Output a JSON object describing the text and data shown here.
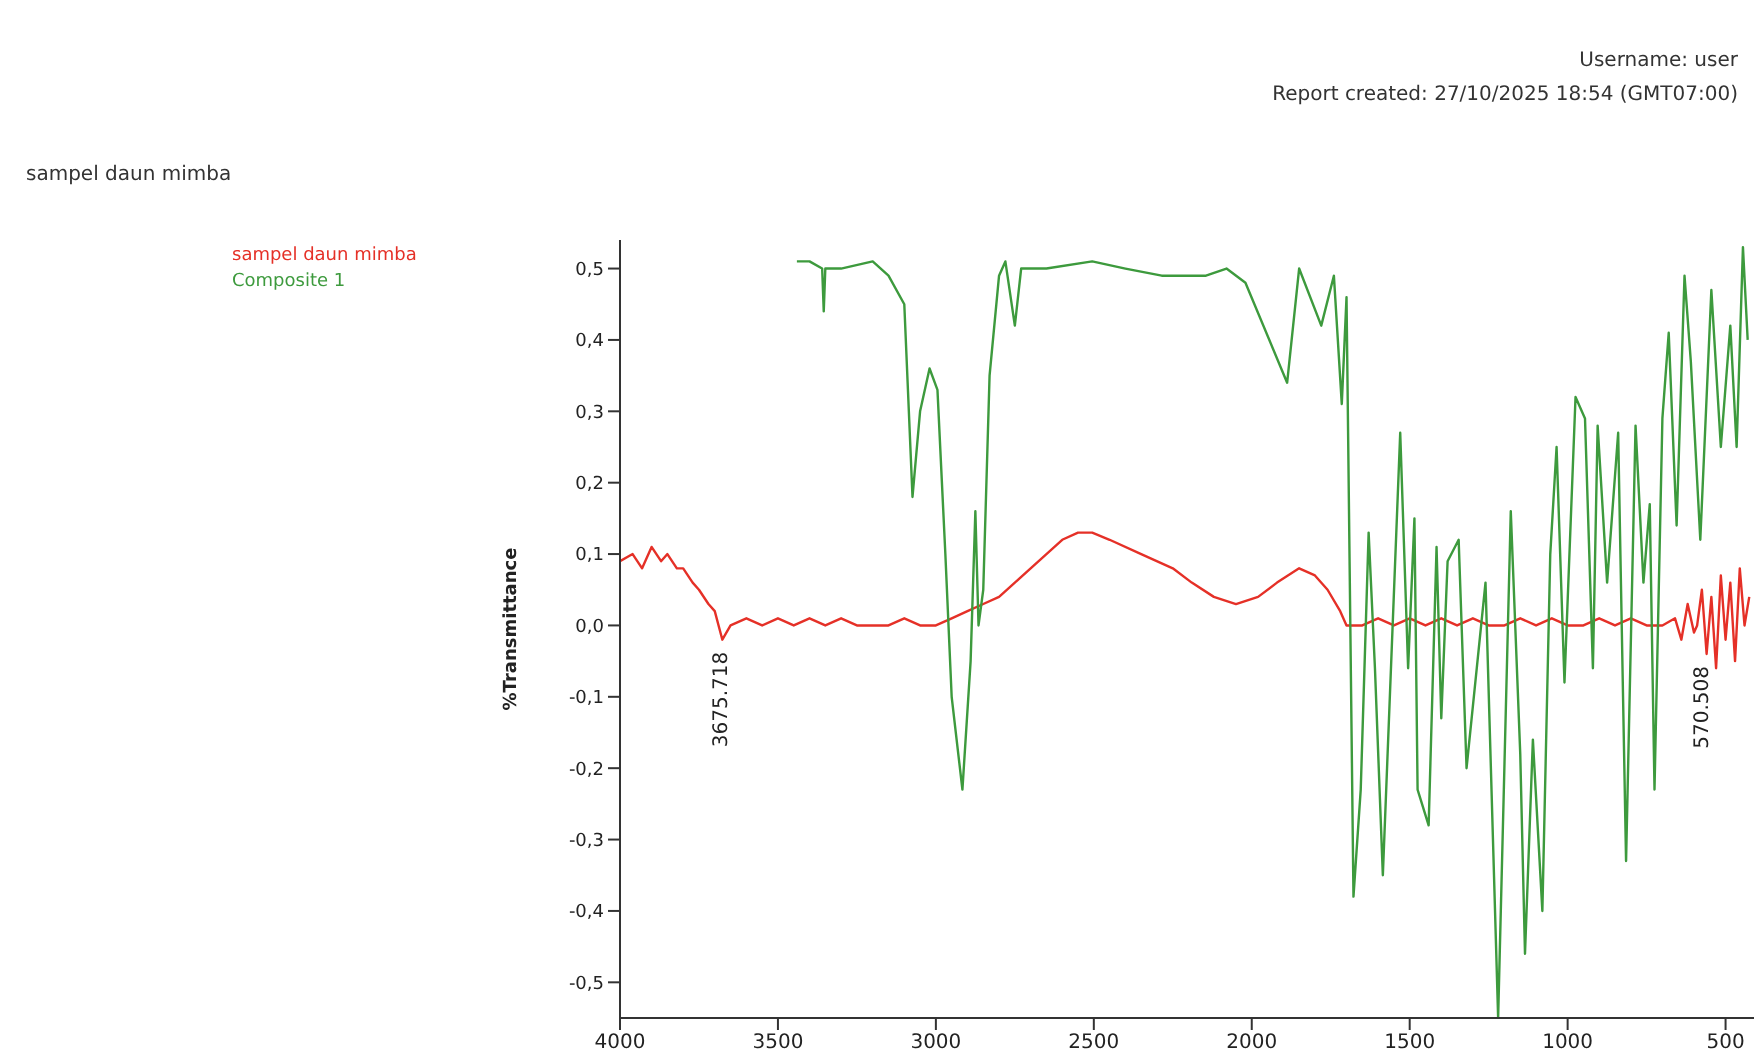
{
  "chart_data": {
    "type": "line",
    "subtitle": "sampel daun mimba",
    "ylabel": "%Transmittance",
    "annotations": [
      "Username: user",
      "Report created: 27/10/2025 18:54 (GMT07:00)",
      {
        "text": "3675.718",
        "x": 3675.718,
        "y": -0.02
      },
      {
        "text": "570.508",
        "x": 570.508,
        "y": -0.04
      }
    ],
    "xlim": [
      4000,
      410
    ],
    "xticks": [
      4000,
      3500,
      3000,
      2500,
      2000,
      1500,
      1000,
      500
    ],
    "ylim": [
      -0.55,
      0.54
    ],
    "yticks": [
      {
        "value": -0.5,
        "label": "-0,5"
      },
      {
        "value": -0.4,
        "label": "-0,4"
      },
      {
        "value": -0.3,
        "label": "-0,3"
      },
      {
        "value": -0.2,
        "label": "-0,2"
      },
      {
        "value": -0.1,
        "label": "-0,1"
      },
      {
        "value": 0,
        "label": "0,0"
      },
      {
        "value": 0.1,
        "label": "0,1"
      },
      {
        "value": 0.2,
        "label": "0,2"
      },
      {
        "value": 0.3,
        "label": "0,3"
      },
      {
        "value": 0.4,
        "label": "0,4"
      },
      {
        "value": 0.5,
        "label": "0,5"
      }
    ],
    "grid": false,
    "legend": "top left",
    "marker": "none",
    "line_style": "solid",
    "series": [
      {
        "name": "sampel daun mimba",
        "color": "#e53027",
        "x": [
          4000,
          3960,
          3930,
          3900,
          3870,
          3850,
          3820,
          3800,
          3770,
          3750,
          3720,
          3700,
          3676,
          3650,
          3600,
          3550,
          3500,
          3450,
          3400,
          3350,
          3300,
          3250,
          3200,
          3150,
          3100,
          3050,
          3000,
          2950,
          2900,
          2850,
          2800,
          2750,
          2700,
          2650,
          2600,
          2550,
          2505,
          2450,
          2350,
          2250,
          2190,
          2120,
          2050,
          1980,
          1920,
          1850,
          1800,
          1760,
          1720,
          1700,
          1650,
          1600,
          1550,
          1500,
          1450,
          1400,
          1350,
          1300,
          1250,
          1200,
          1150,
          1100,
          1050,
          1000,
          950,
          900,
          850,
          800,
          750,
          700,
          660,
          640,
          620,
          600,
          590,
          575,
          560,
          545,
          530,
          515,
          500,
          485,
          470,
          455,
          440,
          425
        ],
        "values": [
          0.09,
          0.1,
          0.08,
          0.11,
          0.09,
          0.1,
          0.08,
          0.08,
          0.06,
          0.05,
          0.03,
          0.02,
          -0.02,
          0.0,
          0.01,
          0.0,
          0.01,
          0.0,
          0.01,
          0.0,
          0.01,
          0.0,
          0.0,
          0.0,
          0.01,
          0.0,
          0.0,
          0.01,
          0.02,
          0.03,
          0.04,
          0.06,
          0.08,
          0.1,
          0.12,
          0.13,
          0.13,
          0.12,
          0.1,
          0.08,
          0.06,
          0.04,
          0.03,
          0.04,
          0.06,
          0.08,
          0.07,
          0.05,
          0.02,
          0.0,
          0.0,
          0.01,
          0.0,
          0.01,
          0.0,
          0.01,
          0.0,
          0.01,
          0.0,
          0.0,
          0.01,
          0.0,
          0.01,
          0.0,
          0.0,
          0.01,
          0.0,
          0.01,
          0.0,
          0.0,
          0.01,
          -0.02,
          0.03,
          -0.01,
          0.0,
          0.05,
          -0.04,
          0.04,
          -0.06,
          0.07,
          -0.02,
          0.06,
          -0.05,
          0.08,
          0.0,
          0.04
        ]
      },
      {
        "name": "Composite 1",
        "color": "#3d9a3d",
        "x": [
          3440,
          3400,
          3360,
          3355,
          3350,
          3300,
          3200,
          3150,
          3100,
          3074,
          3050,
          3020,
          2995,
          2970,
          2950,
          2916,
          2890,
          2875,
          2865,
          2850,
          2830,
          2800,
          2780,
          2750,
          2730,
          2650,
          2505,
          2400,
          2285,
          2145,
          2080,
          2020,
          1888,
          1850,
          1780,
          1740,
          1715,
          1700,
          1678,
          1655,
          1630,
          1610,
          1585,
          1530,
          1505,
          1485,
          1475,
          1440,
          1415,
          1400,
          1380,
          1345,
          1320,
          1260,
          1220,
          1180,
          1150,
          1135,
          1110,
          1080,
          1055,
          1035,
          1010,
          975,
          945,
          920,
          905,
          875,
          840,
          815,
          785,
          760,
          740,
          725,
          700,
          680,
          655,
          630,
          610,
          580,
          545,
          515,
          485,
          465,
          445,
          430
        ],
        "values": [
          0.51,
          0.51,
          0.5,
          0.44,
          0.5,
          0.5,
          0.51,
          0.49,
          0.45,
          0.18,
          0.3,
          0.36,
          0.33,
          0.1,
          -0.1,
          -0.23,
          -0.05,
          0.16,
          0.0,
          0.05,
          0.35,
          0.49,
          0.51,
          0.42,
          0.5,
          0.5,
          0.51,
          0.5,
          0.49,
          0.49,
          0.5,
          0.48,
          0.34,
          0.5,
          0.42,
          0.49,
          0.31,
          0.46,
          -0.38,
          -0.23,
          0.13,
          -0.06,
          -0.35,
          0.27,
          -0.06,
          0.15,
          -0.23,
          -0.28,
          0.11,
          -0.13,
          0.09,
          0.12,
          -0.2,
          0.06,
          -0.55,
          0.16,
          -0.18,
          -0.46,
          -0.16,
          -0.4,
          0.1,
          0.25,
          -0.08,
          0.32,
          0.29,
          -0.06,
          0.28,
          0.06,
          0.27,
          -0.33,
          0.28,
          0.06,
          0.17,
          -0.23,
          0.29,
          0.41,
          0.14,
          0.49,
          0.37,
          0.12,
          0.47,
          0.25,
          0.42,
          0.25,
          0.53,
          0.4
        ]
      }
    ]
  }
}
